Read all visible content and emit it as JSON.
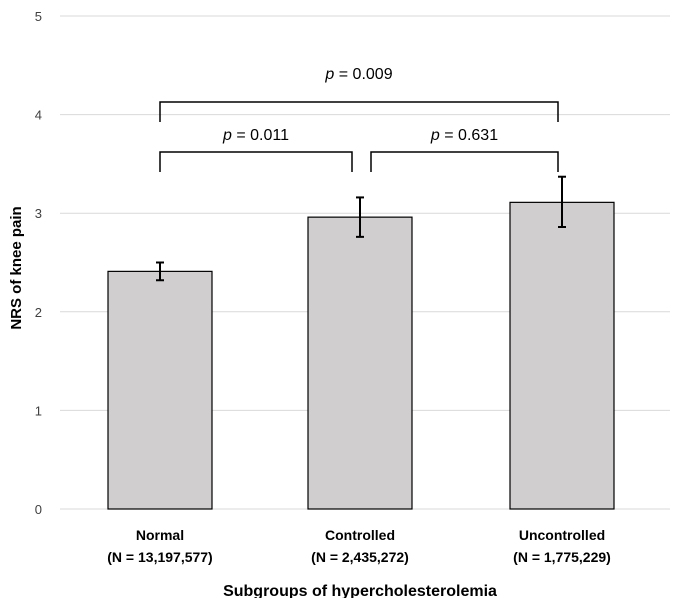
{
  "chart_data": {
    "type": "bar",
    "categories": [
      "Normal",
      "Controlled",
      "Uncontrolled"
    ],
    "category_sublabels": [
      "(N = 13,197,577)",
      "(N = 2,435,272)",
      "(N = 1,775,229)"
    ],
    "values": [
      2.41,
      2.96,
      3.11
    ],
    "error_bars": [
      [
        2.32,
        2.5
      ],
      [
        2.76,
        3.16
      ],
      [
        2.86,
        3.37
      ]
    ],
    "ylim": [
      0,
      5
    ],
    "yticks": [
      "0",
      "1",
      "2",
      "3",
      "4",
      "5"
    ],
    "ylabel": "NRS of knee pain",
    "xlabel": "Subgroups of hypercholesterolemia",
    "grid": true,
    "colors": {
      "bar": "#d0cecf",
      "bar_edge": "#000000",
      "grid": "#d9d9d9"
    },
    "annotations": [
      {
        "from": 0,
        "to": 2,
        "label_p": "p",
        "label_rest": " = 0.009"
      },
      {
        "from": 0,
        "to": 1,
        "label_p": "p",
        "label_rest": " = 0.011"
      },
      {
        "from": 1,
        "to": 2,
        "label_p": "p",
        "label_rest": " = 0.631"
      }
    ]
  }
}
